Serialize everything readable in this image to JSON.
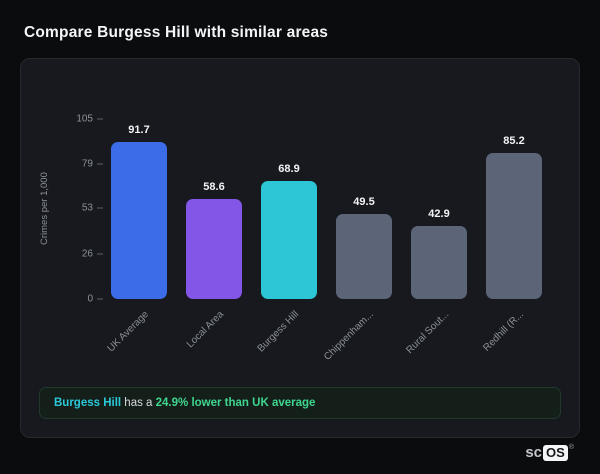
{
  "page": {
    "title": "Compare Burgess Hill with similar areas"
  },
  "chart_data": {
    "type": "bar",
    "categories": [
      "UK Average",
      "Local Area",
      "Burgess Hill",
      "Chippenham...",
      "Rural Sout...",
      "Redhill (R..."
    ],
    "values": [
      91.7,
      58.6,
      68.9,
      49.5,
      42.9,
      85.2
    ],
    "bar_colors": [
      "#3c6ce8",
      "#8456e8",
      "#2cc6d6",
      "#5b6577",
      "#5b6577",
      "#5b6577"
    ],
    "title": "Compare Burgess Hill with similar areas",
    "xlabel": "",
    "ylabel": "Crimes per 1,000",
    "yticks": [
      0,
      26,
      53,
      79,
      105
    ],
    "ylim": [
      0,
      105
    ],
    "grid": false,
    "legend": false,
    "value_labels": [
      "91.7",
      "58.6",
      "68.9",
      "49.5",
      "42.9",
      "85.2"
    ]
  },
  "note": {
    "highlight": "Burgess Hill",
    "connector": " has a ",
    "stat": "24.9% lower than UK average"
  },
  "logo": {
    "prefix": "sc",
    "box": "OS",
    "registered": "®"
  },
  "colors": {
    "background": "#0b0c0e",
    "card": "#17191e",
    "highlight_teal": "#2bc9d8",
    "stat_green": "#3fd68f",
    "axis_text": "#8b919a"
  }
}
